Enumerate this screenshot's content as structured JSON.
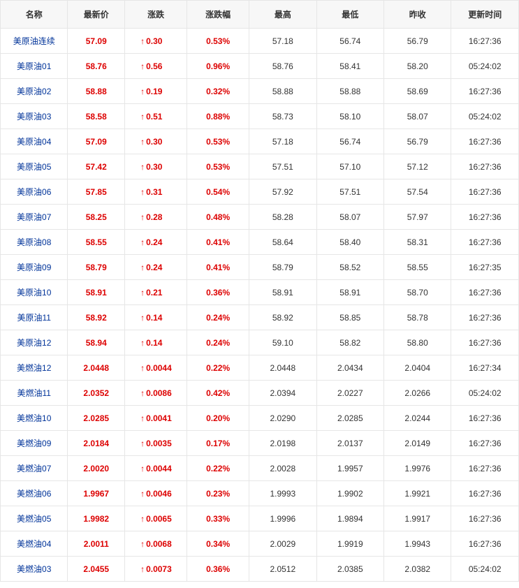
{
  "colors": {
    "up": "#dd0000",
    "link": "#003399",
    "border": "#e6e6e6",
    "header_bg": "#f7f7f7",
    "text": "#333333"
  },
  "arrow_up": "↑",
  "table": {
    "columns": [
      "名称",
      "最新价",
      "涨跌",
      "涨跌幅",
      "最高",
      "最低",
      "昨收",
      "更新时间"
    ],
    "rows": [
      {
        "name": "美原油连续",
        "price": "57.09",
        "change": "0.30",
        "pct": "0.53%",
        "high": "57.18",
        "low": "56.74",
        "prev": "56.79",
        "time": "16:27:36"
      },
      {
        "name": "美原油01",
        "price": "58.76",
        "change": "0.56",
        "pct": "0.96%",
        "high": "58.76",
        "low": "58.41",
        "prev": "58.20",
        "time": "05:24:02"
      },
      {
        "name": "美原油02",
        "price": "58.88",
        "change": "0.19",
        "pct": "0.32%",
        "high": "58.88",
        "low": "58.88",
        "prev": "58.69",
        "time": "16:27:36"
      },
      {
        "name": "美原油03",
        "price": "58.58",
        "change": "0.51",
        "pct": "0.88%",
        "high": "58.73",
        "low": "58.10",
        "prev": "58.07",
        "time": "05:24:02"
      },
      {
        "name": "美原油04",
        "price": "57.09",
        "change": "0.30",
        "pct": "0.53%",
        "high": "57.18",
        "low": "56.74",
        "prev": "56.79",
        "time": "16:27:36"
      },
      {
        "name": "美原油05",
        "price": "57.42",
        "change": "0.30",
        "pct": "0.53%",
        "high": "57.51",
        "low": "57.10",
        "prev": "57.12",
        "time": "16:27:36"
      },
      {
        "name": "美原油06",
        "price": "57.85",
        "change": "0.31",
        "pct": "0.54%",
        "high": "57.92",
        "low": "57.51",
        "prev": "57.54",
        "time": "16:27:36"
      },
      {
        "name": "美原油07",
        "price": "58.25",
        "change": "0.28",
        "pct": "0.48%",
        "high": "58.28",
        "low": "58.07",
        "prev": "57.97",
        "time": "16:27:36"
      },
      {
        "name": "美原油08",
        "price": "58.55",
        "change": "0.24",
        "pct": "0.41%",
        "high": "58.64",
        "low": "58.40",
        "prev": "58.31",
        "time": "16:27:36"
      },
      {
        "name": "美原油09",
        "price": "58.79",
        "change": "0.24",
        "pct": "0.41%",
        "high": "58.79",
        "low": "58.52",
        "prev": "58.55",
        "time": "16:27:35"
      },
      {
        "name": "美原油10",
        "price": "58.91",
        "change": "0.21",
        "pct": "0.36%",
        "high": "58.91",
        "low": "58.91",
        "prev": "58.70",
        "time": "16:27:36"
      },
      {
        "name": "美原油11",
        "price": "58.92",
        "change": "0.14",
        "pct": "0.24%",
        "high": "58.92",
        "low": "58.85",
        "prev": "58.78",
        "time": "16:27:36"
      },
      {
        "name": "美原油12",
        "price": "58.94",
        "change": "0.14",
        "pct": "0.24%",
        "high": "59.10",
        "low": "58.82",
        "prev": "58.80",
        "time": "16:27:36"
      },
      {
        "name": "美燃油12",
        "price": "2.0448",
        "change": "0.0044",
        "pct": "0.22%",
        "high": "2.0448",
        "low": "2.0434",
        "prev": "2.0404",
        "time": "16:27:34"
      },
      {
        "name": "美燃油11",
        "price": "2.0352",
        "change": "0.0086",
        "pct": "0.42%",
        "high": "2.0394",
        "low": "2.0227",
        "prev": "2.0266",
        "time": "05:24:02"
      },
      {
        "name": "美燃油10",
        "price": "2.0285",
        "change": "0.0041",
        "pct": "0.20%",
        "high": "2.0290",
        "low": "2.0285",
        "prev": "2.0244",
        "time": "16:27:36"
      },
      {
        "name": "美燃油09",
        "price": "2.0184",
        "change": "0.0035",
        "pct": "0.17%",
        "high": "2.0198",
        "low": "2.0137",
        "prev": "2.0149",
        "time": "16:27:36"
      },
      {
        "name": "美燃油07",
        "price": "2.0020",
        "change": "0.0044",
        "pct": "0.22%",
        "high": "2.0028",
        "low": "1.9957",
        "prev": "1.9976",
        "time": "16:27:36"
      },
      {
        "name": "美燃油06",
        "price": "1.9967",
        "change": "0.0046",
        "pct": "0.23%",
        "high": "1.9993",
        "low": "1.9902",
        "prev": "1.9921",
        "time": "16:27:36"
      },
      {
        "name": "美燃油05",
        "price": "1.9982",
        "change": "0.0065",
        "pct": "0.33%",
        "high": "1.9996",
        "low": "1.9894",
        "prev": "1.9917",
        "time": "16:27:36"
      },
      {
        "name": "美燃油04",
        "price": "2.0011",
        "change": "0.0068",
        "pct": "0.34%",
        "high": "2.0029",
        "low": "1.9919",
        "prev": "1.9943",
        "time": "16:27:36"
      },
      {
        "name": "美燃油03",
        "price": "2.0455",
        "change": "0.0073",
        "pct": "0.36%",
        "high": "2.0512",
        "low": "2.0385",
        "prev": "2.0382",
        "time": "05:24:02"
      }
    ]
  }
}
